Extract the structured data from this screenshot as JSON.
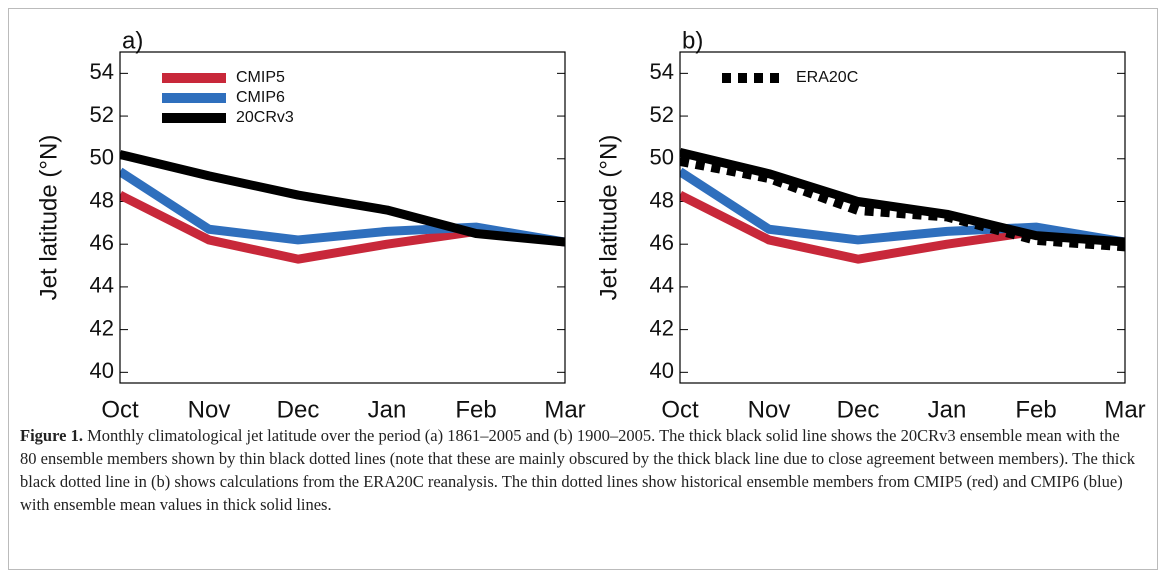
{
  "chart_data": [
    {
      "type": "line",
      "panel": "a)",
      "ylabel": "Jet latitude (°N)",
      "categories": [
        "Oct",
        "Nov",
        "Dec",
        "Jan",
        "Feb",
        "Mar"
      ],
      "ylim": [
        39.5,
        55
      ],
      "yticks": [
        40,
        42,
        44,
        46,
        48,
        50,
        52,
        54
      ],
      "legend": "upper left",
      "series": [
        {
          "name": "CMIP5",
          "color": "#c8283a",
          "style": "solid",
          "values": [
            48.3,
            46.2,
            45.3,
            46.0,
            46.6,
            46.1
          ]
        },
        {
          "name": "CMIP6",
          "color": "#2f6fbd",
          "style": "solid",
          "values": [
            49.4,
            46.7,
            46.2,
            46.6,
            46.8,
            46.1
          ]
        },
        {
          "name": "20CRv3",
          "color": "#000000",
          "style": "solid",
          "values": [
            50.2,
            49.2,
            48.3,
            47.6,
            46.5,
            46.1
          ]
        }
      ]
    },
    {
      "type": "line",
      "panel": "b)",
      "ylabel": "Jet latitude (°N)",
      "categories": [
        "Oct",
        "Nov",
        "Dec",
        "Jan",
        "Feb",
        "Mar"
      ],
      "ylim": [
        39.5,
        55
      ],
      "yticks": [
        40,
        42,
        44,
        46,
        48,
        50,
        52,
        54
      ],
      "legend": "upper left",
      "series": [
        {
          "color": "#c8283a",
          "style": "solid",
          "values": [
            48.3,
            46.2,
            45.3,
            46.0,
            46.6,
            46.1
          ]
        },
        {
          "color": "#2f6fbd",
          "style": "solid",
          "values": [
            49.4,
            46.7,
            46.2,
            46.6,
            46.8,
            46.1
          ]
        },
        {
          "color": "#000000",
          "style": "solid",
          "values": [
            50.3,
            49.3,
            48.0,
            47.4,
            46.4,
            46.1
          ]
        },
        {
          "name": "ERA20C",
          "color": "#000000",
          "style": "dotted",
          "values": [
            49.9,
            49.1,
            47.6,
            47.3,
            46.2,
            45.9
          ]
        }
      ]
    }
  ],
  "caption": {
    "label": "Figure 1.",
    "text": "Monthly climatological jet latitude over the period (a) 1861–2005 and (b) 1900–2005. The thick black solid line shows the 20CRv3 ensemble mean with the 80 ensemble members shown by thin black dotted lines (note that these are mainly obscured by the thick black line due to close agreement between members). The thick black dotted line in (b) shows calculations from the ERA20C reanalysis. The thin dotted lines show historical ensemble members from CMIP5 (red) and CMIP6 (blue) with ensemble mean values in thick solid lines."
  }
}
